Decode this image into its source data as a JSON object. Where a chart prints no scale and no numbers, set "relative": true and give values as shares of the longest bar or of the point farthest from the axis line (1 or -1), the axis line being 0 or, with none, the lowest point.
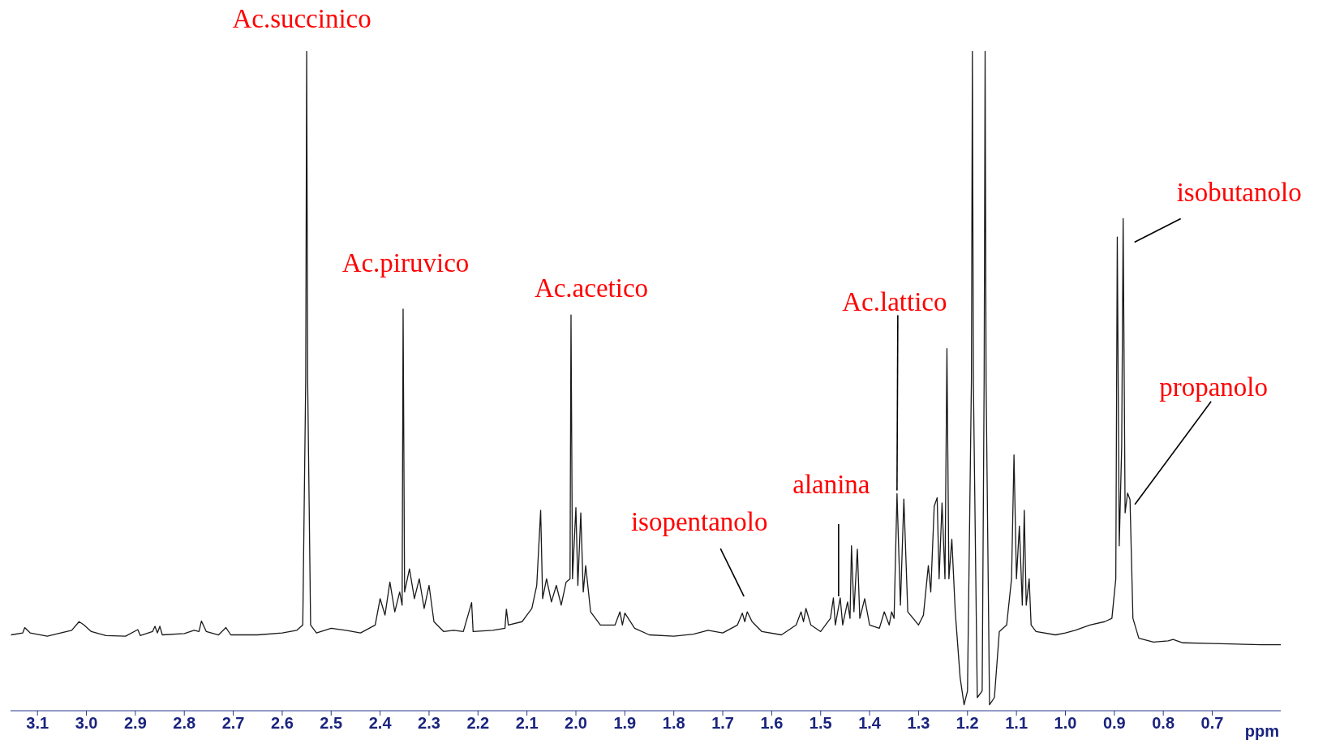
{
  "chart_data": {
    "type": "line",
    "relative": true,
    "xlabel": "ppm",
    "xlim": [
      3.155,
      0.56
    ],
    "xticks": [
      3.1,
      {
        "value": 3,
        "label": "3.0"
      },
      2.9,
      2.8,
      2.7,
      2.6,
      2.5,
      2.4,
      2.3,
      2.2,
      2.1,
      {
        "value": 2,
        "label": "2.0"
      },
      1.9,
      1.8,
      1.7,
      1.6,
      1.5,
      1.4,
      1.3,
      1.2,
      1.1,
      {
        "value": 1,
        "label": "1.0"
      },
      0.9,
      0.8,
      0.7
    ],
    "marker": "none",
    "series": [
      {
        "color": "#1a1a1a",
        "x": [
          3.154,
          3.13,
          3.126,
          3.115,
          3.08,
          3.03,
          3.015,
          3.005,
          2.99,
          2.96,
          2.92,
          2.895,
          2.89,
          2.865,
          2.86,
          2.855,
          2.85,
          2.845,
          2.8,
          2.78,
          2.77,
          2.765,
          2.755,
          2.73,
          2.715,
          2.705,
          2.65,
          2.6,
          2.57,
          2.558,
          2.552,
          2.55,
          2.548,
          2.542,
          2.53,
          2.5,
          2.47,
          2.44,
          2.41,
          2.4,
          2.39,
          2.38,
          2.37,
          2.36,
          2.355,
          2.353,
          2.35,
          2.34,
          2.33,
          2.32,
          2.31,
          2.3,
          2.29,
          2.27,
          2.25,
          2.23,
          2.213,
          2.21,
          2.17,
          2.145,
          2.142,
          2.138,
          2.11,
          2.09,
          2.08,
          2.072,
          2.068,
          2.06,
          2.05,
          2.04,
          2.03,
          2.02,
          2.012,
          2.01,
          2.007,
          2.0,
          1.996,
          1.99,
          1.985,
          1.98,
          1.97,
          1.95,
          1.92,
          1.91,
          1.905,
          1.9,
          1.88,
          1.85,
          1.8,
          1.76,
          1.73,
          1.7,
          1.67,
          1.66,
          1.655,
          1.65,
          1.64,
          1.62,
          1.58,
          1.55,
          1.54,
          1.535,
          1.53,
          1.52,
          1.5,
          1.48,
          1.474,
          1.47,
          1.46,
          1.455,
          1.445,
          1.44,
          1.437,
          1.432,
          1.425,
          1.42,
          1.41,
          1.4,
          1.38,
          1.37,
          1.36,
          1.355,
          1.35,
          1.344,
          1.337,
          1.33,
          1.322,
          1.3,
          1.29,
          1.28,
          1.275,
          1.268,
          1.262,
          1.258,
          1.252,
          1.246,
          1.242,
          1.238,
          1.232,
          1.225,
          1.215,
          1.207,
          1.2,
          1.192,
          1.19,
          1.188,
          1.18,
          1.17,
          1.166,
          1.164,
          1.162,
          1.155,
          1.145,
          1.135,
          1.12,
          1.11,
          1.105,
          1.1,
          1.094,
          1.088,
          1.084,
          1.08,
          1.074,
          1.07,
          1.06,
          1.02,
          1.0,
          0.98,
          0.95,
          0.92,
          0.905,
          0.897,
          0.894,
          0.89,
          0.885,
          0.882,
          0.878,
          0.873,
          0.868,
          0.862,
          0.85,
          0.82,
          0.79,
          0.78,
          0.76,
          0.7,
          0.6,
          0.56
        ],
        "values": [
          0.115,
          0.118,
          0.126,
          0.118,
          0.113,
          0.122,
          0.135,
          0.13,
          0.12,
          0.114,
          0.113,
          0.123,
          0.114,
          0.12,
          0.128,
          0.118,
          0.128,
          0.115,
          0.117,
          0.122,
          0.12,
          0.136,
          0.12,
          0.115,
          0.126,
          0.115,
          0.115,
          0.118,
          0.122,
          0.13,
          0.5,
          1.0,
          0.5,
          0.13,
          0.118,
          0.125,
          0.122,
          0.118,
          0.13,
          0.17,
          0.145,
          0.195,
          0.15,
          0.18,
          0.16,
          0.609,
          0.18,
          0.215,
          0.17,
          0.2,
          0.155,
          0.19,
          0.135,
          0.12,
          0.122,
          0.12,
          0.164,
          0.12,
          0.122,
          0.125,
          0.154,
          0.13,
          0.135,
          0.155,
          0.19,
          0.304,
          0.17,
          0.2,
          0.165,
          0.19,
          0.16,
          0.195,
          0.2,
          0.6,
          0.2,
          0.308,
          0.19,
          0.3,
          0.18,
          0.22,
          0.15,
          0.13,
          0.13,
          0.15,
          0.13,
          0.148,
          0.125,
          0.115,
          0.113,
          0.116,
          0.122,
          0.118,
          0.13,
          0.148,
          0.135,
          0.15,
          0.135,
          0.12,
          0.115,
          0.13,
          0.15,
          0.135,
          0.155,
          0.13,
          0.12,
          0.14,
          0.171,
          0.13,
          0.171,
          0.13,
          0.165,
          0.14,
          0.25,
          0.15,
          0.245,
          0.14,
          0.17,
          0.13,
          0.125,
          0.15,
          0.13,
          0.15,
          0.14,
          0.329,
          0.16,
          0.321,
          0.15,
          0.13,
          0.145,
          0.22,
          0.18,
          0.31,
          0.323,
          0.2,
          0.315,
          0.2,
          0.549,
          0.2,
          0.26,
          0.15,
          0.05,
          0.009,
          0.03,
          0.5,
          1.0,
          0.5,
          0.02,
          0.03,
          0.5,
          1.0,
          0.5,
          0.009,
          0.02,
          0.12,
          0.13,
          0.2,
          0.388,
          0.2,
          0.28,
          0.16,
          0.304,
          0.16,
          0.2,
          0.13,
          0.12,
          0.115,
          0.118,
          0.122,
          0.13,
          0.135,
          0.14,
          0.2,
          0.718,
          0.25,
          0.4,
          0.746,
          0.3,
          0.33,
          0.32,
          0.14,
          0.11,
          0.104,
          0.106,
          0.108,
          0.103,
          0.102,
          0.1,
          0.1
        ]
      }
    ],
    "annotations": [
      {
        "text": "Ac.succinico",
        "x": 2.55,
        "y": 1.0
      },
      {
        "text": "Ac.piruvico",
        "x": 2.353,
        "y": 0.609
      },
      {
        "text": "Ac.acetico",
        "x": 2.01,
        "y": 0.6
      },
      {
        "text": "isopentanolo",
        "x": 1.65,
        "y": 0.15
      },
      {
        "text": "alanina",
        "x": 1.46,
        "y": 0.171
      },
      {
        "text": "Ac.lattico",
        "x": 1.344,
        "y": 0.329
      },
      {
        "text": "isobutanolo",
        "x": 0.882,
        "y": 0.746
      },
      {
        "text": "propanolo",
        "x": 0.868,
        "y": 0.32
      }
    ]
  }
}
